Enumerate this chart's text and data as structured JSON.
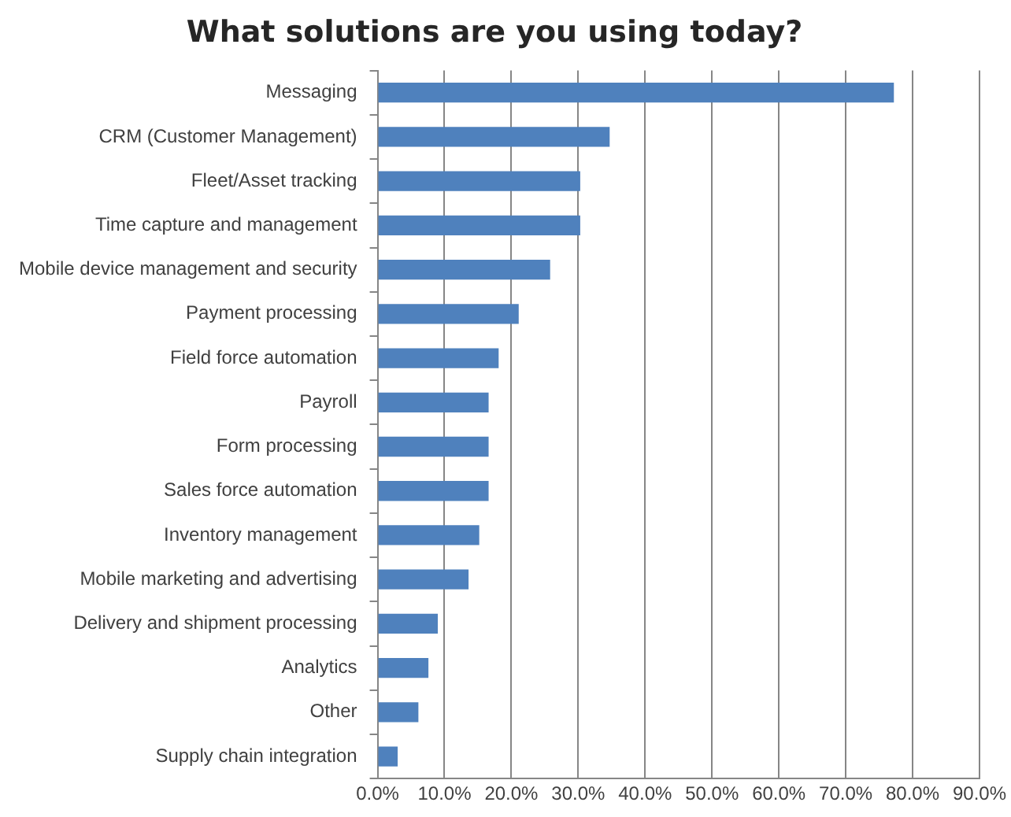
{
  "chart_data": {
    "type": "bar",
    "orientation": "horizontal",
    "title": "What solutions are you using today?",
    "categories": [
      "Messaging",
      "CRM (Customer Management)",
      "Fleet/Asset tracking",
      "Time capture and management",
      "Mobile device management and security",
      "Payment processing",
      "Field force automation",
      "Payroll",
      "Form processing",
      "Sales force automation",
      "Inventory management",
      "Mobile marketing and advertising",
      "Delivery and shipment processing",
      "Analytics",
      "Other",
      "Supply chain integration"
    ],
    "values": [
      77.2,
      34.7,
      30.3,
      30.3,
      25.8,
      21.1,
      18.1,
      16.6,
      16.6,
      16.6,
      15.2,
      13.6,
      9.0,
      7.6,
      6.1,
      3.0
    ],
    "color": "#4f81bd",
    "xlim": [
      0,
      90
    ],
    "xticks": [
      {
        "value": 0,
        "label": "0.0%"
      },
      {
        "value": 10,
        "label": "10.0%"
      },
      {
        "value": 20,
        "label": "20.0%"
      },
      {
        "value": 30,
        "label": "30.0%"
      },
      {
        "value": 40,
        "label": "40.0%"
      },
      {
        "value": 50,
        "label": "50.0%"
      },
      {
        "value": 60,
        "label": "60.0%"
      },
      {
        "value": 70,
        "label": "70.0%"
      },
      {
        "value": 80,
        "label": "80.0%"
      },
      {
        "value": 90,
        "label": "90.0%"
      }
    ],
    "grid": "x",
    "legend": false
  }
}
